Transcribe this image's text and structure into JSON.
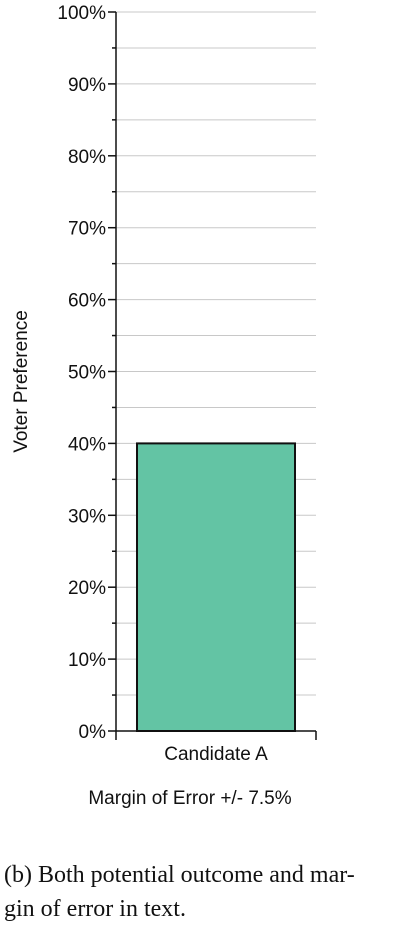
{
  "chart_data": {
    "type": "bar",
    "categories": [
      "Candidate A"
    ],
    "values": [
      40
    ],
    "ylabel": "Voter Preference",
    "ylim": [
      0,
      100
    ],
    "y_ticks": [
      "0%",
      "10%",
      "20%",
      "30%",
      "40%",
      "50%",
      "60%",
      "70%",
      "80%",
      "90%",
      "100%"
    ],
    "annotation": "Margin of Error +/- 7.5%",
    "grid": true,
    "bar_color": "#63c4a4"
  },
  "caption_line1": "(b) Both potential outcome and mar-",
  "caption_line2": "gin of error in text."
}
